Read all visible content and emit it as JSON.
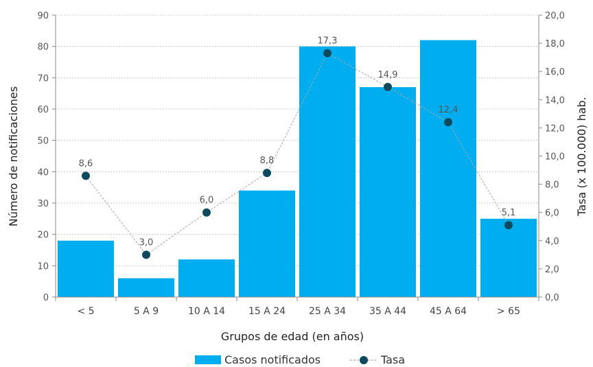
{
  "chart_data": {
    "type": "bar",
    "categories": [
      "<  5",
      "5 A 9",
      "10 A 14",
      "15 A 24",
      "25 A 34",
      "35 A 44",
      "45 A 64",
      "> 65"
    ],
    "series": [
      {
        "name": "Casos notificados",
        "type": "bar",
        "axis": "left",
        "color": "#00AEEF",
        "values": [
          18,
          6,
          12,
          34,
          80,
          67,
          82,
          25
        ]
      },
      {
        "name": "Tasa",
        "type": "line",
        "axis": "right",
        "color": "#0D4A5E",
        "values": [
          8.6,
          3.0,
          6.0,
          8.8,
          17.3,
          14.9,
          12.4,
          5.1
        ],
        "labels": [
          "8,6",
          "3,0",
          "6,0",
          "8,8",
          "17,3",
          "14,9",
          "12,4",
          "5,1"
        ]
      }
    ],
    "xlabel": "Grupos de edad (en años)",
    "ylabel": "Número de notificaciones",
    "y2label": "Tasa (x 100.000) hab.",
    "ylim": [
      0,
      90
    ],
    "y2lim": [
      0,
      20
    ],
    "yticks": [
      "0",
      "10",
      "20",
      "30",
      "40",
      "50",
      "60",
      "70",
      "80",
      "90"
    ],
    "y2ticks": [
      "0,0",
      "2,0",
      "4,0",
      "6,0",
      "8,0",
      "10,0",
      "12,0",
      "14,0",
      "16,0",
      "18,0",
      "20,0"
    ],
    "grid": true,
    "legend_position": "bottom"
  }
}
